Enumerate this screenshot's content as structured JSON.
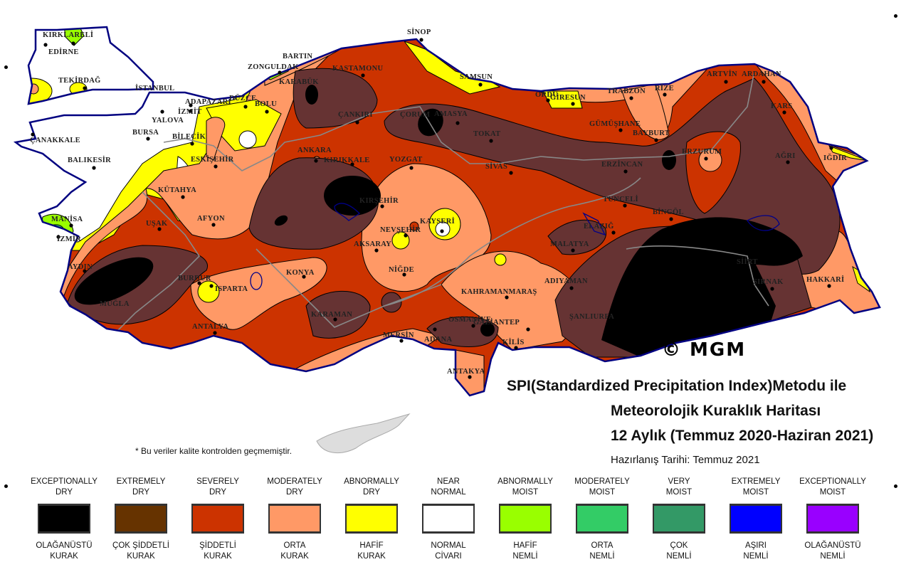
{
  "map": {
    "copyright": "© MGM",
    "title_line1": "SPI(Standardized Precipitation Index)Metodu ile",
    "title_line2": "Meteorolojik Kuraklık Haritası",
    "title_line3": "12 Aylık (Temmuz 2020-Haziran 2021)",
    "prepared": "Hazırlanış Tarihi: Temmuz 2021",
    "footnote": "* Bu veriler kalite kontrolden geçmemiştir.",
    "cities": [
      "KIRKLARELİ",
      "EDİRNE",
      "TEKİRDAĞ",
      "İSTANBUL",
      "ÇANAKKALE",
      "BALIKESİR",
      "BURSA",
      "YALOVA",
      "İZMİT",
      "ADAPAZARI",
      "DÜZCE",
      "BOLU",
      "BİLECİK",
      "ESKİŞEHİR",
      "KÜTAHYA",
      "AFYON",
      "UŞAK",
      "MANİSA",
      "İZMİR",
      "AYDIN",
      "MUĞLA",
      "BURDUR",
      "ISPARTA",
      "ANTALYA",
      "KONYA",
      "KARAMAN",
      "MERSİN",
      "ADANA",
      "OSMANİYE",
      "GAZİANTEP",
      "KİLİS",
      "ANTAKYA",
      "KAHRAMANMARAŞ",
      "ADIYAMAN",
      "ŞANLIURFA",
      "MALATYA",
      "ELAZIĞ",
      "TUNCELİ",
      "BİNGÖL",
      "ERZİNCAN",
      "ERZURUM",
      "AĞRI",
      "IĞDIR",
      "KARS",
      "ARDAHAN",
      "ARTVİN",
      "RİZE",
      "TRABZON",
      "GÜMÜŞHANE",
      "BAYBURT",
      "GİRESUN",
      "ORDU",
      "SAMSUN",
      "SİNOP",
      "KASTAMONU",
      "ÇANKIRI",
      "ÇORUM",
      "AMASYA",
      "TOKAT",
      "SİVAS",
      "YOZGAT",
      "KIRIKKALE",
      "ANKARA",
      "KIRŞEHİR",
      "NEVŞEHİR",
      "KAYSERİ",
      "AKSARAY",
      "NİĞDE",
      "ZONGULDAK",
      "BARTIN",
      "KARABÜK",
      "SİİRT",
      "ŞIRNAK",
      "HAKKARİ"
    ]
  },
  "legend": [
    {
      "en": "Exceptionally Dry",
      "tr1": "OLAĞANÜSTÜ",
      "tr2": "KURAK",
      "color": "#000000"
    },
    {
      "en": "Extremely Dry",
      "tr1": "ÇOK ŞİDDETLİ",
      "tr2": "KURAK",
      "color": "#663300"
    },
    {
      "en": "Severely Dry",
      "tr1": "ŞİDDETLİ",
      "tr2": "KURAK",
      "color": "#CC3300"
    },
    {
      "en": "Moderately Dry",
      "tr1": "ORTA",
      "tr2": "KURAK",
      "color": "#FF9966"
    },
    {
      "en": "Abnormally Dry",
      "tr1": "HAFİF",
      "tr2": "KURAK",
      "color": "#FFFF00"
    },
    {
      "en": "Near Normal",
      "tr1": "NORMAL",
      "tr2": "CİVARI",
      "color": "#FFFFFF"
    },
    {
      "en": "Abnormally Moist",
      "tr1": "HAFİF",
      "tr2": "NEMLİ",
      "color": "#99FF00"
    },
    {
      "en": "Moderately Moist",
      "tr1": "ORTA",
      "tr2": "NEMLİ",
      "color": "#33CC66"
    },
    {
      "en": "Very Moist",
      "tr1": "ÇOK",
      "tr2": "NEMLİ",
      "color": "#339966"
    },
    {
      "en": "Extremely Moist",
      "tr1": "AŞIRI",
      "tr2": "NEMLİ",
      "color": "#0000FF"
    },
    {
      "en": "Exceptionally Moist",
      "tr1": "OLAĞANÜSTÜ",
      "tr2": "NEMLİ",
      "color": "#9900FF"
    }
  ]
}
